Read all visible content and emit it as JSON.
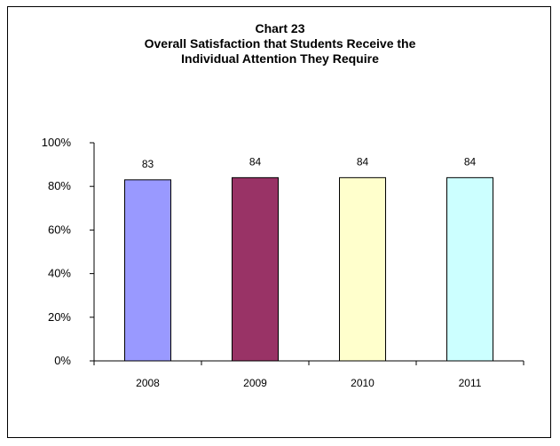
{
  "chart_data": {
    "type": "bar",
    "title_lines": [
      "Chart 23",
      "Overall Satisfaction that Students Receive the",
      "Individual Attention They Require"
    ],
    "categories": [
      "2008",
      "2009",
      "2010",
      "2011"
    ],
    "values": [
      83,
      84,
      84,
      84
    ],
    "data_labels": [
      "83",
      "84",
      "84",
      "84"
    ],
    "ylim": [
      0,
      100
    ],
    "yticks": [
      "0%",
      "20%",
      "40%",
      "60%",
      "80%",
      "100%"
    ],
    "xlabel": "",
    "ylabel": "",
    "grid": false,
    "legend": "none",
    "bar_colors": [
      "#9999ff",
      "#993366",
      "#ffffcc",
      "#ccffff"
    ],
    "bar_outline": "#000000"
  }
}
